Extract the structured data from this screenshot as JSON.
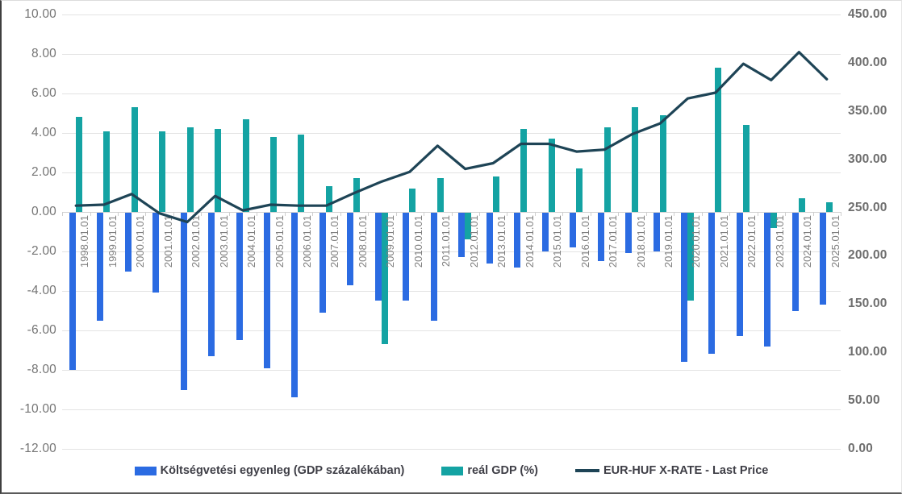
{
  "chart_data": {
    "type": "bar",
    "subtype": "combo-bar-line",
    "title": "",
    "categories": [
      "1998.01.01",
      "1999.01.01",
      "2000.01.01",
      "2001.01.01",
      "2002.01.01",
      "2003.01.01",
      "2004.01.01",
      "2005.01.01",
      "2006.01.01",
      "2007.01.01",
      "2008.01.01",
      "2009.01.01",
      "2010.01.01",
      "2011.01.01",
      "2012.01.01",
      "2013.01.01",
      "2014.01.01",
      "2015.01.01",
      "2016.01.01",
      "2017.01.01",
      "2018.01.01",
      "2019.01.01",
      "2020.01.01",
      "2021.01.01",
      "2022.01.01",
      "2023.01.01",
      "2024.01.01",
      "2025.01.01"
    ],
    "series": [
      {
        "name": "Költségvetési egyenleg (GDP százalékában)",
        "type": "bar",
        "axis": "left",
        "color": "#2b6be2",
        "values": [
          -8.0,
          -5.5,
          -3.0,
          -4.1,
          -9.0,
          -7.3,
          -6.5,
          -7.9,
          -9.4,
          -5.1,
          -3.7,
          -4.5,
          -4.5,
          -5.5,
          -2.3,
          -2.6,
          -2.8,
          -2.0,
          -1.8,
          -2.5,
          -2.1,
          -2.0,
          -7.6,
          -7.2,
          -6.3,
          -6.8,
          -5.0,
          -4.7
        ]
      },
      {
        "name": "reál GDP (%)",
        "type": "bar",
        "axis": "left",
        "color": "#14a3a3",
        "values": [
          4.8,
          4.1,
          5.3,
          4.1,
          4.3,
          4.2,
          4.7,
          3.8,
          3.9,
          1.3,
          1.7,
          -6.7,
          1.2,
          1.7,
          -1.4,
          1.8,
          4.2,
          3.7,
          2.2,
          4.3,
          5.3,
          4.9,
          -4.5,
          7.3,
          4.4,
          -0.8,
          0.7,
          0.5
        ]
      },
      {
        "name": "EUR-HUF X-RATE - Last Price",
        "type": "line",
        "axis": "right",
        "color": "#1e4456",
        "values": [
          252,
          253,
          264,
          244,
          235,
          262,
          247,
          253,
          252,
          252,
          265,
          277,
          287,
          314,
          290,
          296,
          316,
          316,
          308,
          310,
          326,
          337,
          363,
          369,
          399,
          382,
          411,
          383
        ]
      }
    ],
    "left_axis": {
      "min": -12,
      "max": 10,
      "step": 2,
      "tick_labels": [
        "10.00",
        "8.00",
        "6.00",
        "4.00",
        "2.00",
        "0.00",
        "-2.00",
        "-4.00",
        "-6.00",
        "-8.00",
        "-10.00",
        "-12.00"
      ]
    },
    "right_axis": {
      "min": 0,
      "max": 450,
      "step": 50,
      "tick_labels": [
        "450.00",
        "400.00",
        "350.00",
        "300.00",
        "250.00",
        "200.00",
        "150.00",
        "100.00",
        "50.00",
        "0.00"
      ]
    },
    "grid": true,
    "legend_position": "bottom"
  }
}
